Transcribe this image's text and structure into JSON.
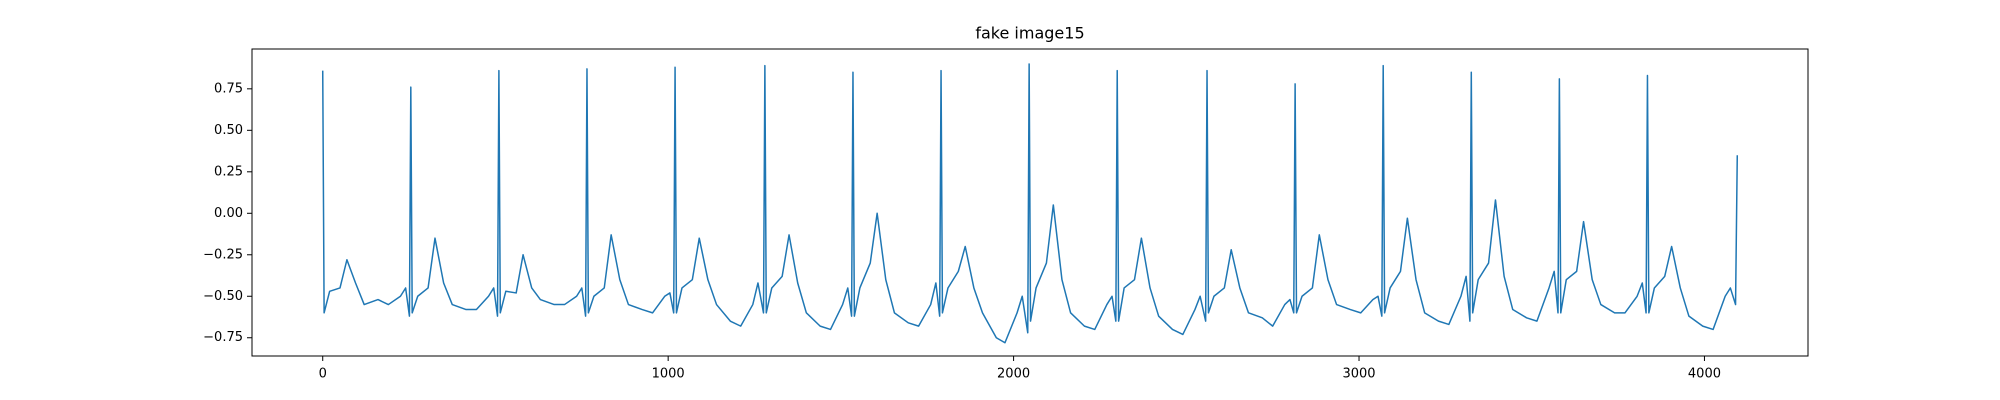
{
  "chart_data": {
    "type": "line",
    "title": "fake image15",
    "x": [
      0,
      4,
      20,
      50,
      70,
      95,
      120,
      160,
      190,
      225,
      240,
      251,
      255,
      259,
      275,
      305,
      325,
      350,
      375,
      415,
      445,
      480,
      495,
      506,
      510,
      514,
      530,
      560,
      580,
      605,
      630,
      670,
      700,
      735,
      750,
      761,
      765,
      769,
      785,
      815,
      835,
      860,
      885,
      925,
      955,
      990,
      1005,
      1016,
      1020,
      1024,
      1040,
      1070,
      1090,
      1115,
      1140,
      1180,
      1210,
      1245,
      1260,
      1276,
      1280,
      1284,
      1300,
      1330,
      1350,
      1375,
      1400,
      1440,
      1470,
      1505,
      1520,
      1531,
      1535,
      1539,
      1555,
      1585,
      1605,
      1630,
      1655,
      1695,
      1725,
      1760,
      1775,
      1786,
      1790,
      1794,
      1810,
      1840,
      1860,
      1885,
      1910,
      1950,
      1975,
      2010,
      2025,
      2041,
      2045,
      2049,
      2065,
      2095,
      2115,
      2140,
      2165,
      2205,
      2235,
      2270,
      2285,
      2296,
      2300,
      2304,
      2320,
      2350,
      2370,
      2395,
      2420,
      2460,
      2490,
      2525,
      2540,
      2556,
      2560,
      2564,
      2580,
      2610,
      2630,
      2655,
      2680,
      2720,
      2750,
      2785,
      2800,
      2811,
      2815,
      2819,
      2835,
      2865,
      2885,
      2910,
      2935,
      2975,
      3005,
      3040,
      3055,
      3066,
      3070,
      3074,
      3090,
      3120,
      3140,
      3165,
      3190,
      3230,
      3260,
      3295,
      3310,
      3321,
      3325,
      3329,
      3345,
      3375,
      3395,
      3420,
      3445,
      3485,
      3515,
      3550,
      3565,
      3576,
      3580,
      3584,
      3600,
      3630,
      3650,
      3675,
      3700,
      3740,
      3770,
      3805,
      3820,
      3831,
      3835,
      3839,
      3855,
      3885,
      3905,
      3930,
      3955,
      3995,
      4025,
      4060,
      4075,
      4090,
      4095
    ],
    "series": [
      {
        "color": "#1f77b4",
        "values": [
          0.86,
          -0.6,
          -0.47,
          -0.45,
          -0.28,
          -0.42,
          -0.55,
          -0.52,
          -0.55,
          -0.5,
          -0.45,
          -0.62,
          0.76,
          -0.6,
          -0.5,
          -0.45,
          -0.15,
          -0.42,
          -0.55,
          -0.58,
          -0.58,
          -0.5,
          -0.45,
          -0.62,
          0.86,
          -0.6,
          -0.47,
          -0.48,
          -0.25,
          -0.45,
          -0.52,
          -0.55,
          -0.55,
          -0.5,
          -0.45,
          -0.62,
          0.87,
          -0.6,
          -0.5,
          -0.45,
          -0.13,
          -0.4,
          -0.55,
          -0.58,
          -0.6,
          -0.5,
          -0.48,
          -0.6,
          0.88,
          -0.6,
          -0.45,
          -0.4,
          -0.15,
          -0.4,
          -0.55,
          -0.65,
          -0.68,
          -0.55,
          -0.42,
          -0.6,
          0.89,
          -0.6,
          -0.45,
          -0.38,
          -0.13,
          -0.42,
          -0.6,
          -0.68,
          -0.7,
          -0.55,
          -0.45,
          -0.62,
          0.85,
          -0.62,
          -0.45,
          -0.3,
          0.0,
          -0.4,
          -0.6,
          -0.66,
          -0.68,
          -0.55,
          -0.42,
          -0.62,
          0.86,
          -0.6,
          -0.45,
          -0.35,
          -0.2,
          -0.45,
          -0.6,
          -0.75,
          -0.78,
          -0.6,
          -0.5,
          -0.72,
          0.9,
          -0.65,
          -0.45,
          -0.3,
          0.05,
          -0.4,
          -0.6,
          -0.68,
          -0.7,
          -0.55,
          -0.5,
          -0.65,
          0.86,
          -0.65,
          -0.45,
          -0.4,
          -0.15,
          -0.45,
          -0.62,
          -0.7,
          -0.73,
          -0.58,
          -0.5,
          -0.65,
          0.86,
          -0.6,
          -0.5,
          -0.45,
          -0.22,
          -0.45,
          -0.6,
          -0.63,
          -0.68,
          -0.55,
          -0.52,
          -0.6,
          0.78,
          -0.6,
          -0.5,
          -0.45,
          -0.13,
          -0.4,
          -0.55,
          -0.58,
          -0.6,
          -0.52,
          -0.5,
          -0.62,
          0.89,
          -0.6,
          -0.45,
          -0.35,
          -0.03,
          -0.4,
          -0.6,
          -0.65,
          -0.67,
          -0.5,
          -0.38,
          -0.65,
          0.85,
          -0.6,
          -0.4,
          -0.3,
          0.08,
          -0.38,
          -0.58,
          -0.63,
          -0.65,
          -0.45,
          -0.35,
          -0.6,
          0.81,
          -0.6,
          -0.4,
          -0.35,
          -0.05,
          -0.4,
          -0.55,
          -0.6,
          -0.6,
          -0.5,
          -0.42,
          -0.6,
          0.83,
          -0.6,
          -0.45,
          -0.38,
          -0.2,
          -0.45,
          -0.62,
          -0.68,
          -0.7,
          -0.5,
          -0.45,
          -0.55,
          0.35
        ]
      }
    ],
    "xlim": [
      -204.75,
      4299.75
    ],
    "xticks": [
      0,
      1000,
      2000,
      3000,
      4000
    ],
    "ylim": [
      -0.86,
      0.99
    ],
    "yticks": [
      {
        "value": -0.75,
        "label": "−0.75"
      },
      {
        "value": -0.5,
        "label": "−0.50"
      },
      {
        "value": -0.25,
        "label": "−0.25"
      },
      {
        "value": 0,
        "label": "0.00"
      },
      {
        "value": 0.25,
        "label": "0.25"
      },
      {
        "value": 0.5,
        "label": "0.50"
      },
      {
        "value": 0.75,
        "label": "0.75"
      }
    ],
    "grid": false
  }
}
